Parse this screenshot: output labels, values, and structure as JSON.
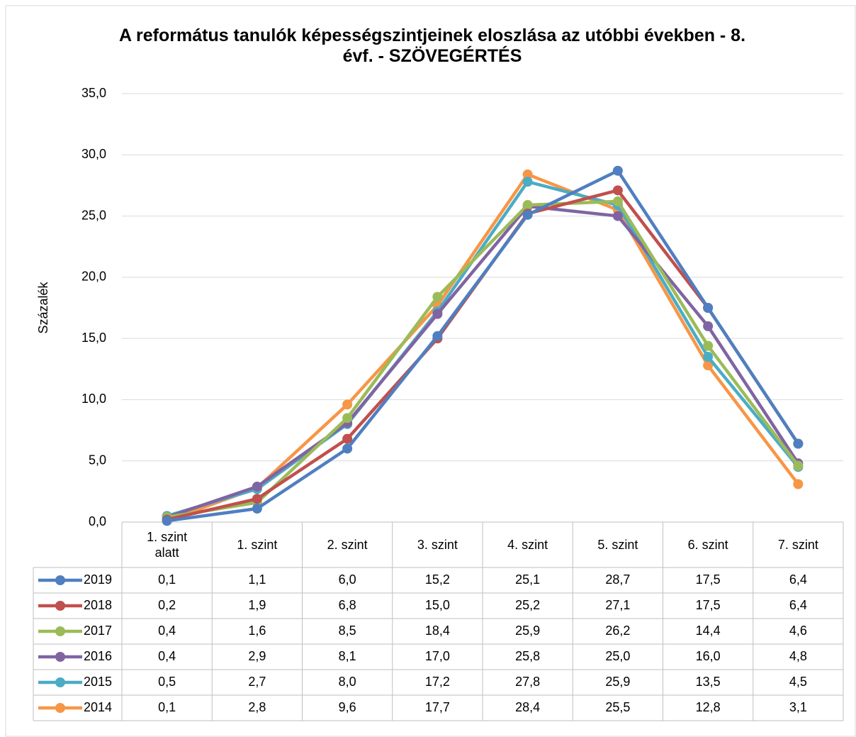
{
  "chart_data": {
    "type": "line",
    "title": "A református tanulók képességszintjeinek eloszlása az utóbbi években - 8. évf.  - SZÖVEGÉRTÉS",
    "ylabel": "Százalék",
    "categories": [
      "1. szint alatt",
      "1. szint",
      "2. szint",
      "3. szint",
      "4. szint",
      "5. szint",
      "6. szint",
      "7. szint"
    ],
    "ylim": [
      0,
      35
    ],
    "yticks": [
      {
        "value": 0,
        "label": "0,0"
      },
      {
        "value": 5,
        "label": "5,0"
      },
      {
        "value": 10,
        "label": "10,0"
      },
      {
        "value": 15,
        "label": "15,0"
      },
      {
        "value": 20,
        "label": "20,0"
      },
      {
        "value": 25,
        "label": "25,0"
      },
      {
        "value": 30,
        "label": "30,0"
      },
      {
        "value": 35,
        "label": "35,0"
      }
    ],
    "grid": true,
    "series": [
      {
        "name": "2019",
        "color": "#4f7fc0",
        "values": [
          0.1,
          1.1,
          6.0,
          15.2,
          25.1,
          28.7,
          17.5,
          6.4
        ],
        "value_labels": [
          "0,1",
          "1,1",
          "6,0",
          "15,2",
          "25,1",
          "28,7",
          "17,5",
          "6,4"
        ]
      },
      {
        "name": "2018",
        "color": "#c0504d",
        "values": [
          0.2,
          1.9,
          6.8,
          15.0,
          25.2,
          27.1,
          17.5,
          6.4
        ],
        "value_labels": [
          "0,2",
          "1,9",
          "6,8",
          "15,0",
          "25,2",
          "27,1",
          "17,5",
          "6,4"
        ]
      },
      {
        "name": "2017",
        "color": "#9bbb59",
        "values": [
          0.4,
          1.6,
          8.5,
          18.4,
          25.9,
          26.2,
          14.4,
          4.6
        ],
        "value_labels": [
          "0,4",
          "1,6",
          "8,5",
          "18,4",
          "25,9",
          "26,2",
          "14,4",
          "4,6"
        ]
      },
      {
        "name": "2016",
        "color": "#8064a2",
        "values": [
          0.4,
          2.9,
          8.1,
          17.0,
          25.8,
          25.0,
          16.0,
          4.8
        ],
        "value_labels": [
          "0,4",
          "2,9",
          "8,1",
          "17,0",
          "25,8",
          "25,0",
          "16,0",
          "4,8"
        ]
      },
      {
        "name": "2015",
        "color": "#4bacc6",
        "values": [
          0.5,
          2.7,
          8.0,
          17.2,
          27.8,
          25.9,
          13.5,
          4.5
        ],
        "value_labels": [
          "0,5",
          "2,7",
          "8,0",
          "17,2",
          "27,8",
          "25,9",
          "13,5",
          "4,5"
        ]
      },
      {
        "name": "2014",
        "color": "#f79646",
        "values": [
          0.1,
          2.8,
          9.6,
          17.7,
          28.4,
          25.5,
          12.8,
          3.1
        ],
        "value_labels": [
          "0,1",
          "2,8",
          "9,6",
          "17,7",
          "28,4",
          "25,5",
          "12,8",
          "3,1"
        ]
      }
    ]
  }
}
